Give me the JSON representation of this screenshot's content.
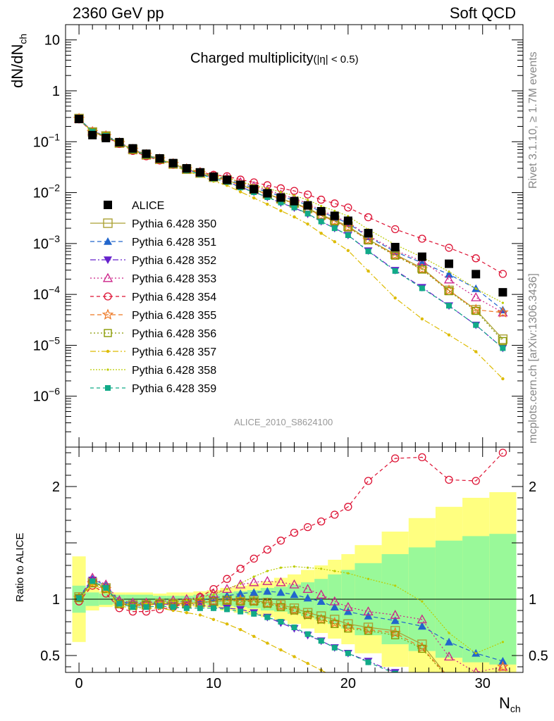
{
  "header": {
    "left_label": "2360 GeV pp",
    "right_label": "Soft QCD"
  },
  "side_labels": {
    "rivet": "Rivet 3.1.10, ≥ 1.7M events",
    "mcplots": "mcplots.cern.ch [arXiv:1306.3436]"
  },
  "chart_data": {
    "type": "line",
    "title": "Charged multiplicity",
    "title_suffix": "(|η| < 0.5)",
    "analysis_id": "ALICE_2010_S8624100",
    "xlabel": "N",
    "xlabel_sub": "ch",
    "ylabel": "dN/dN",
    "ylabel_sub": "ch",
    "ratio_ylabel": "Ratio to ALICE",
    "xlim": [
      -1,
      33
    ],
    "ylim_main_log10": [
      -7,
      1.3
    ],
    "ylim_ratio": [
      0.35,
      2.35
    ],
    "x_ticks": [
      "0",
      "10",
      "20",
      "30"
    ],
    "x_tick_values": [
      0,
      10,
      20,
      30
    ],
    "y_ticks_main": [
      {
        "value": 10,
        "base": "10",
        "exp": ""
      },
      {
        "value": 1,
        "base": "1",
        "exp": ""
      },
      {
        "value": 0.1,
        "base": "10",
        "exp": "−1"
      },
      {
        "value": 0.01,
        "base": "10",
        "exp": "−2"
      },
      {
        "value": 0.001,
        "base": "10",
        "exp": "−3"
      },
      {
        "value": 0.0001,
        "base": "10",
        "exp": "−4"
      },
      {
        "value": 1e-05,
        "base": "10",
        "exp": "−5"
      },
      {
        "value": 1e-06,
        "base": "10",
        "exp": "−6"
      }
    ],
    "y_ticks_ratio": [
      "0.5",
      "1",
      "2"
    ],
    "y_tick_values_ratio": [
      0.5,
      1,
      2
    ],
    "x": [
      0,
      1,
      2,
      3,
      4,
      5,
      6,
      7,
      8,
      9,
      10,
      11,
      12,
      13,
      14,
      15,
      16,
      17,
      18,
      19,
      20,
      21.5,
      23.5,
      25.5,
      27.5,
      29.5,
      31.5
    ],
    "bin_edges": [
      -0.5,
      0.5,
      1.5,
      2.5,
      3.5,
      4.5,
      5.5,
      6.5,
      7.5,
      8.5,
      9.5,
      10.5,
      11.5,
      12.5,
      13.5,
      14.5,
      15.5,
      16.5,
      17.5,
      18.5,
      19.5,
      20.5,
      22.5,
      24.5,
      26.5,
      28.5,
      30.5,
      32.5
    ],
    "data": {
      "name": "ALICE",
      "values": [
        0.28,
        0.135,
        0.118,
        0.098,
        0.074,
        0.058,
        0.047,
        0.038,
        0.03,
        0.025,
        0.0205,
        0.0178,
        0.0142,
        0.0117,
        0.0097,
        0.008,
        0.0068,
        0.0056,
        0.0043,
        0.0035,
        0.0028,
        0.0016,
        0.00085,
        0.00055,
        0.0004,
        0.00025,
        0.00011
      ],
      "err_inner": [
        0.12,
        0.06,
        0.05,
        0.04,
        0.04,
        0.04,
        0.03,
        0.03,
        0.03,
        0.04,
        0.05,
        0.06,
        0.07,
        0.08,
        0.1,
        0.11,
        0.13,
        0.15,
        0.18,
        0.22,
        0.26,
        0.32,
        0.4,
        0.46,
        0.52,
        0.56,
        0.58
      ],
      "err_outer": [
        0.38,
        0.1,
        0.07,
        0.06,
        0.06,
        0.06,
        0.05,
        0.06,
        0.06,
        0.07,
        0.08,
        0.1,
        0.12,
        0.14,
        0.16,
        0.19,
        0.22,
        0.26,
        0.3,
        0.35,
        0.4,
        0.48,
        0.6,
        0.72,
        0.82,
        0.9,
        0.95
      ]
    },
    "series": [
      {
        "name": "Pythia 6.428 350",
        "color": "#aaa133",
        "marker": "square-open",
        "dash": "",
        "ratio": [
          1.02,
          1.15,
          1.1,
          0.96,
          0.95,
          0.95,
          0.96,
          0.96,
          0.96,
          0.97,
          0.98,
          0.99,
          0.99,
          0.99,
          0.97,
          0.95,
          0.92,
          0.88,
          0.85,
          0.82,
          0.78,
          0.75,
          0.72,
          0.6,
          0.3,
          0.2,
          0.12
        ]
      },
      {
        "name": "Pythia 6.428 351",
        "color": "#2266cc",
        "marker": "triangle-up",
        "dash": "6,4",
        "ratio": [
          1.02,
          1.18,
          1.12,
          0.98,
          0.96,
          0.96,
          0.97,
          0.97,
          0.98,
          0.99,
          1.01,
          1.03,
          1.05,
          1.06,
          1.07,
          1.06,
          1.04,
          1.01,
          0.98,
          0.93,
          0.89,
          0.85,
          0.81,
          0.76,
          0.62,
          0.52,
          0.45
        ]
      },
      {
        "name": "Pythia 6.428 352",
        "color": "#6622cc",
        "marker": "triangle-down",
        "dash": "8,3,2,3",
        "ratio": [
          1.01,
          1.17,
          1.1,
          0.97,
          0.95,
          0.95,
          0.96,
          0.95,
          0.95,
          0.95,
          0.93,
          0.92,
          0.91,
          0.88,
          0.84,
          0.79,
          0.74,
          0.68,
          0.63,
          0.57,
          0.52,
          0.45,
          0.35,
          0.25,
          0.15,
          0.1,
          0.08
        ]
      },
      {
        "name": "Pythia 6.428 353",
        "color": "#cc2288",
        "marker": "triangle-up-open",
        "dash": "2,3",
        "ratio": [
          1.01,
          1.19,
          1.13,
          0.99,
          0.97,
          0.97,
          0.98,
          0.99,
          1.0,
          1.02,
          1.05,
          1.09,
          1.13,
          1.15,
          1.16,
          1.15,
          1.13,
          1.09,
          1.04,
          0.98,
          0.93,
          0.89,
          0.86,
          0.82,
          0.49,
          0.35,
          0.4
        ]
      },
      {
        "name": "Pythia 6.428 354",
        "color": "#dd1133",
        "marker": "circle-open",
        "dash": "5,4",
        "ratio": [
          0.98,
          1.12,
          1.05,
          0.92,
          0.89,
          0.89,
          0.91,
          0.93,
          0.97,
          1.02,
          1.09,
          1.18,
          1.27,
          1.36,
          1.44,
          1.52,
          1.59,
          1.64,
          1.69,
          1.75,
          1.82,
          2.05,
          2.25,
          2.26,
          2.06,
          2.05,
          2.3
        ]
      },
      {
        "name": "Pythia 6.428 355",
        "color": "#ee7722",
        "marker": "star-open",
        "dash": "6,4",
        "ratio": [
          1.01,
          1.14,
          1.09,
          0.96,
          0.94,
          0.95,
          0.96,
          0.96,
          0.96,
          0.97,
          0.98,
          0.99,
          0.99,
          0.98,
          0.96,
          0.94,
          0.9,
          0.86,
          0.82,
          0.79,
          0.75,
          0.73,
          0.7,
          0.57,
          0.3,
          0.2,
          0.4
        ]
      },
      {
        "name": "Pythia 6.428 356",
        "color": "#889900",
        "marker": "square-open-small",
        "dash": "2,3",
        "ratio": [
          1.01,
          1.14,
          1.09,
          0.96,
          0.94,
          0.95,
          0.96,
          0.96,
          0.96,
          0.97,
          0.98,
          0.99,
          0.98,
          0.98,
          0.96,
          0.93,
          0.9,
          0.86,
          0.82,
          0.78,
          0.74,
          0.72,
          0.68,
          0.56,
          0.29,
          0.19,
          0.11
        ]
      },
      {
        "name": "Pythia 6.428 357",
        "color": "#ddbb00",
        "marker": "dot",
        "dash": "8,3,2,3",
        "ratio": [
          1.0,
          1.13,
          1.08,
          0.94,
          0.92,
          0.92,
          0.92,
          0.9,
          0.88,
          0.86,
          0.82,
          0.78,
          0.73,
          0.67,
          0.61,
          0.55,
          0.49,
          0.43,
          0.37,
          0.31,
          0.26,
          0.18,
          0.1,
          0.06,
          0.04,
          0.03,
          0.02
        ]
      },
      {
        "name": "Pythia 6.428 358",
        "color": "#bbcc00",
        "marker": "dot-small",
        "dash": "2,2",
        "ratio": [
          1.01,
          1.16,
          1.11,
          0.97,
          0.95,
          0.96,
          0.97,
          0.98,
          0.99,
          1.01,
          1.04,
          1.09,
          1.14,
          1.2,
          1.25,
          1.28,
          1.29,
          1.28,
          1.27,
          1.25,
          1.23,
          1.18,
          1.12,
          0.98,
          0.7,
          0.52,
          0.62
        ]
      },
      {
        "name": "Pythia 6.428 359",
        "color": "#11aa88",
        "marker": "square-filled",
        "dash": "5,4",
        "ratio": [
          1.01,
          1.16,
          1.1,
          0.96,
          0.93,
          0.93,
          0.94,
          0.93,
          0.92,
          0.92,
          0.92,
          0.91,
          0.89,
          0.87,
          0.84,
          0.8,
          0.75,
          0.69,
          0.63,
          0.57,
          0.52,
          0.44,
          0.34,
          0.24,
          0.15,
          0.1,
          0.08
        ]
      }
    ]
  }
}
